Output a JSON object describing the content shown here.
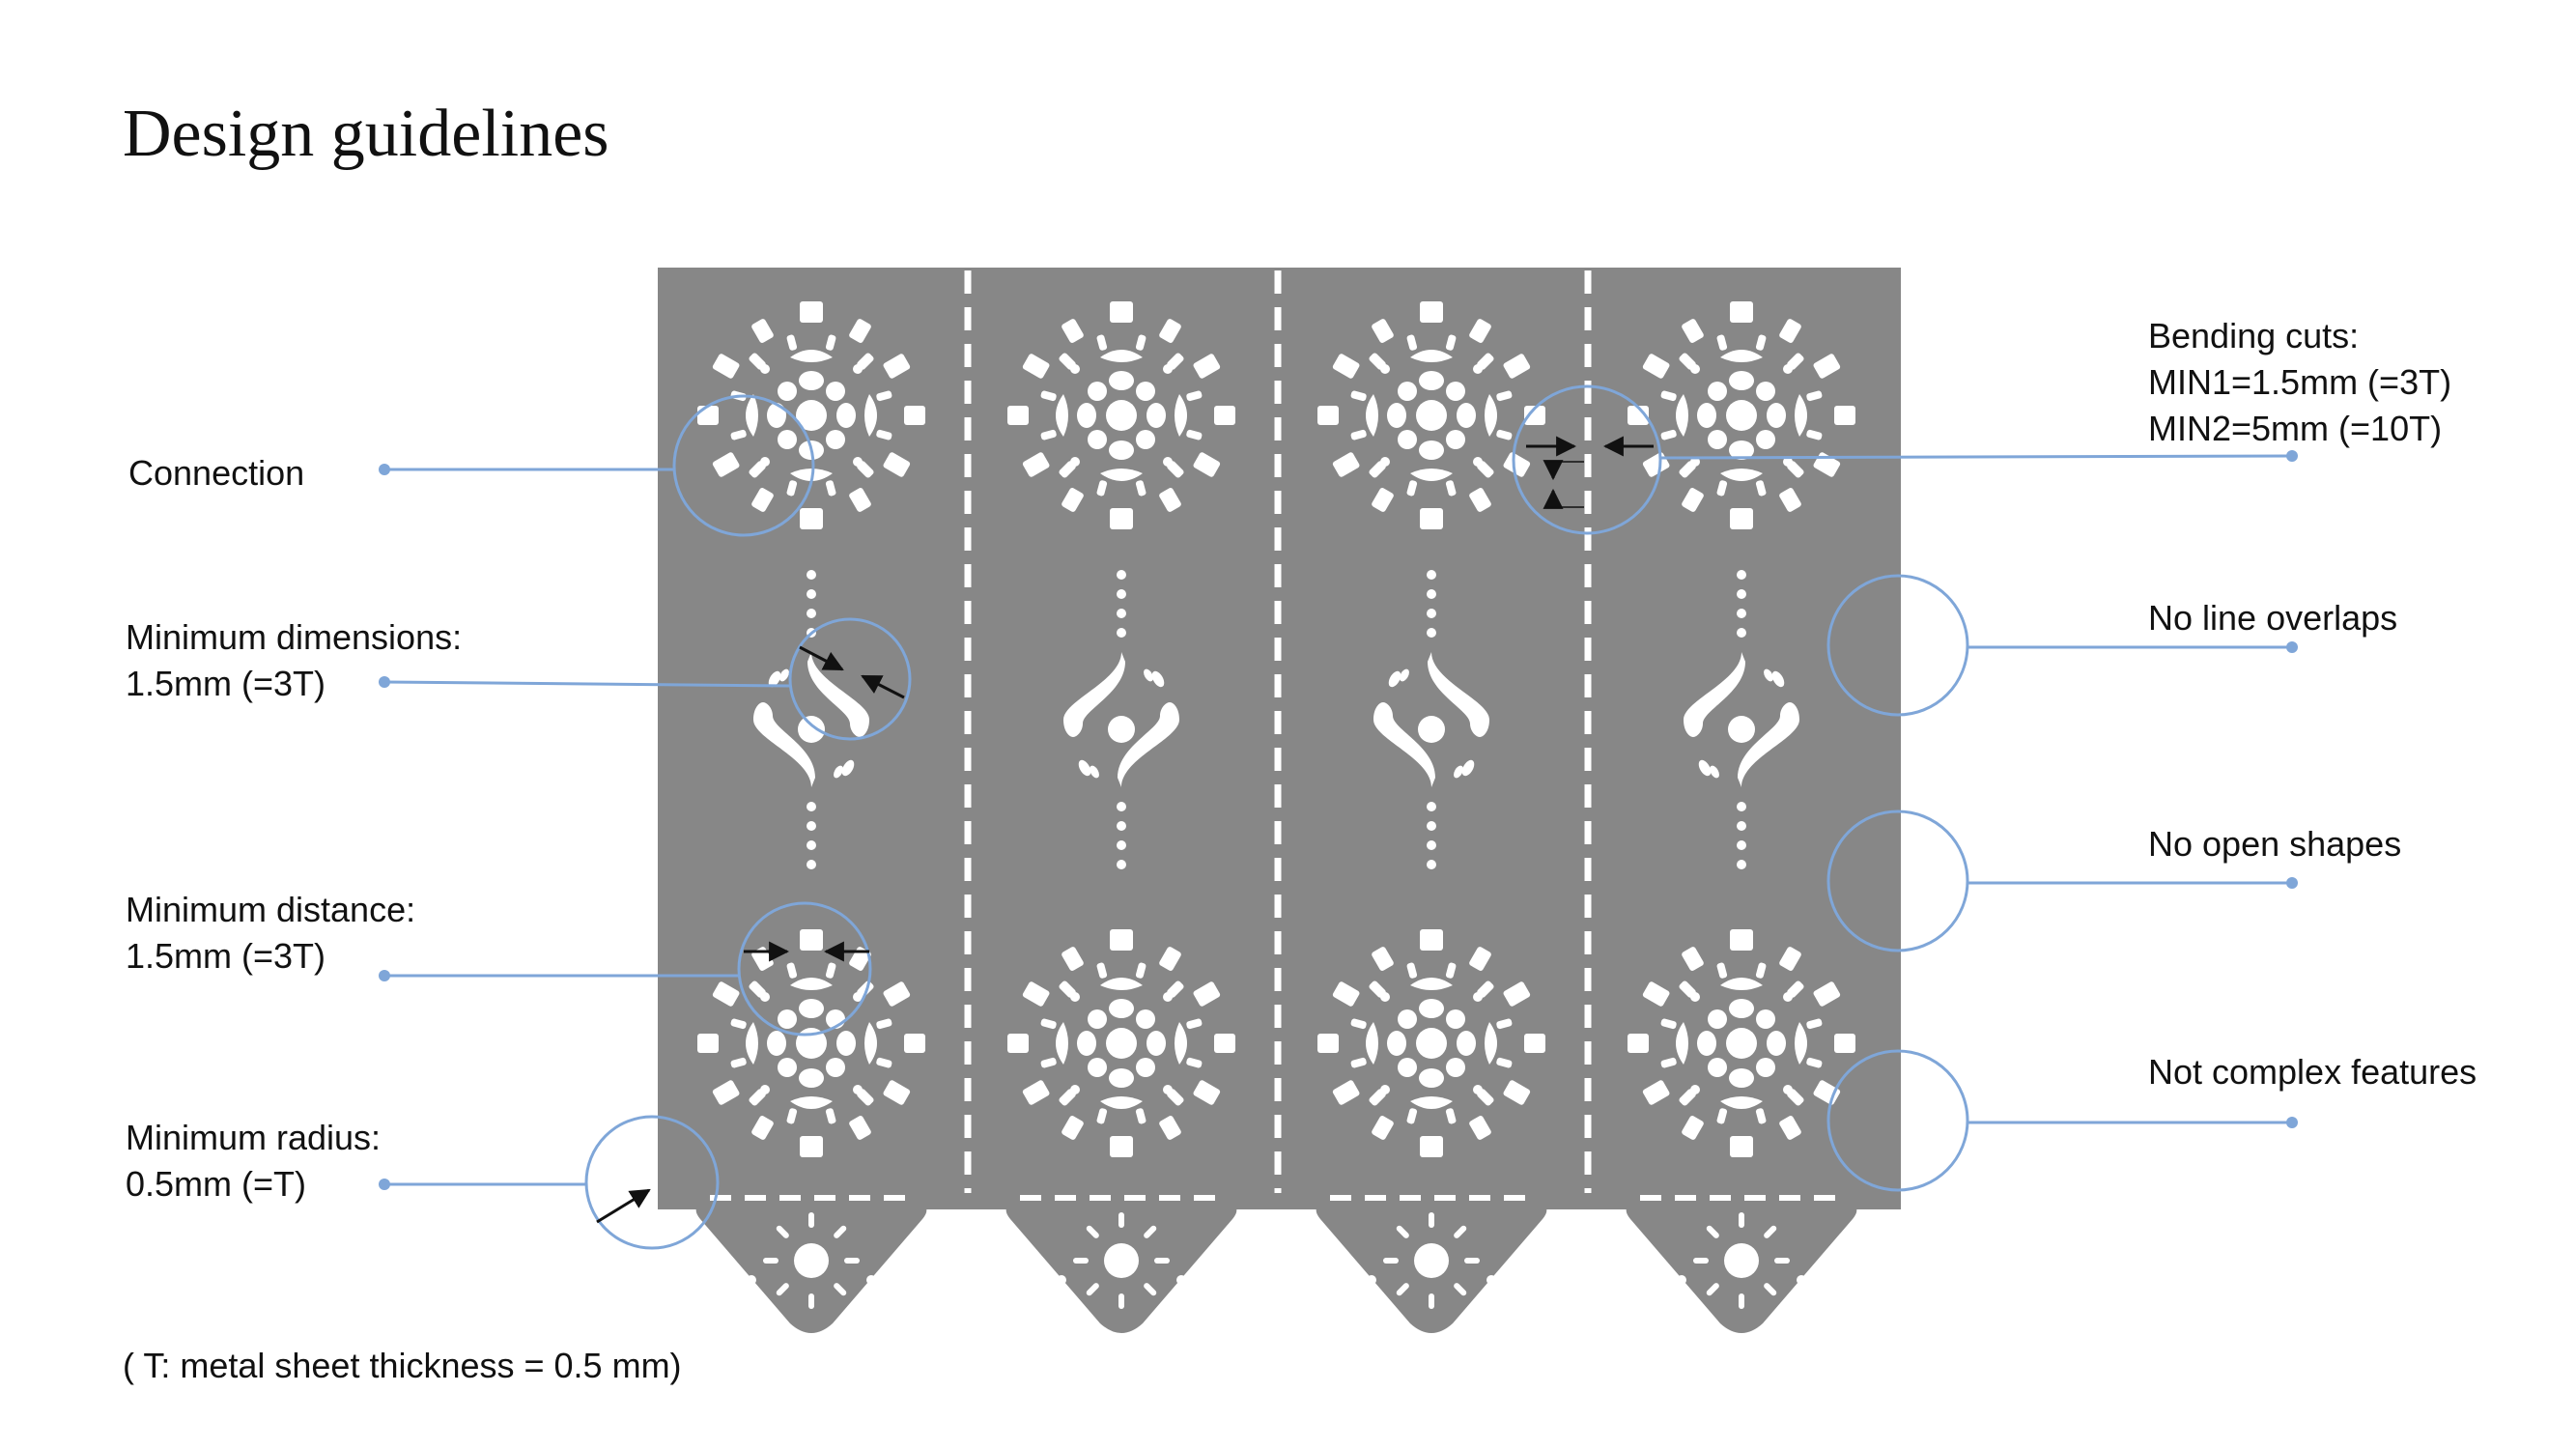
{
  "title": "Design guidelines",
  "labels": {
    "connection": "Connection",
    "min_dimensions": {
      "line1": "Minimum dimensions:",
      "line2": "1.5mm  (=3T)"
    },
    "min_distance": {
      "line1": "Minimum distance:",
      "line2": "1.5mm  (=3T)"
    },
    "min_radius": {
      "line1": "Minimum radius:",
      "line2": "0.5mm  (=T)"
    },
    "bending_cuts": {
      "line1": "Bending cuts:",
      "line2": "MIN1=1.5mm (=3T)",
      "line3": "MIN2=5mm (=10T)"
    },
    "no_line_overlaps": "No line overlaps",
    "no_open_shapes": "No open shapes",
    "not_complex_features": "Not complex features"
  },
  "footnote": "( T: metal sheet thickness = 0.5 mm)",
  "colors": {
    "sheet": "#878787",
    "cutout": "#ffffff",
    "callout": "#7fa6d8",
    "dimension_arrow": "#111111"
  }
}
